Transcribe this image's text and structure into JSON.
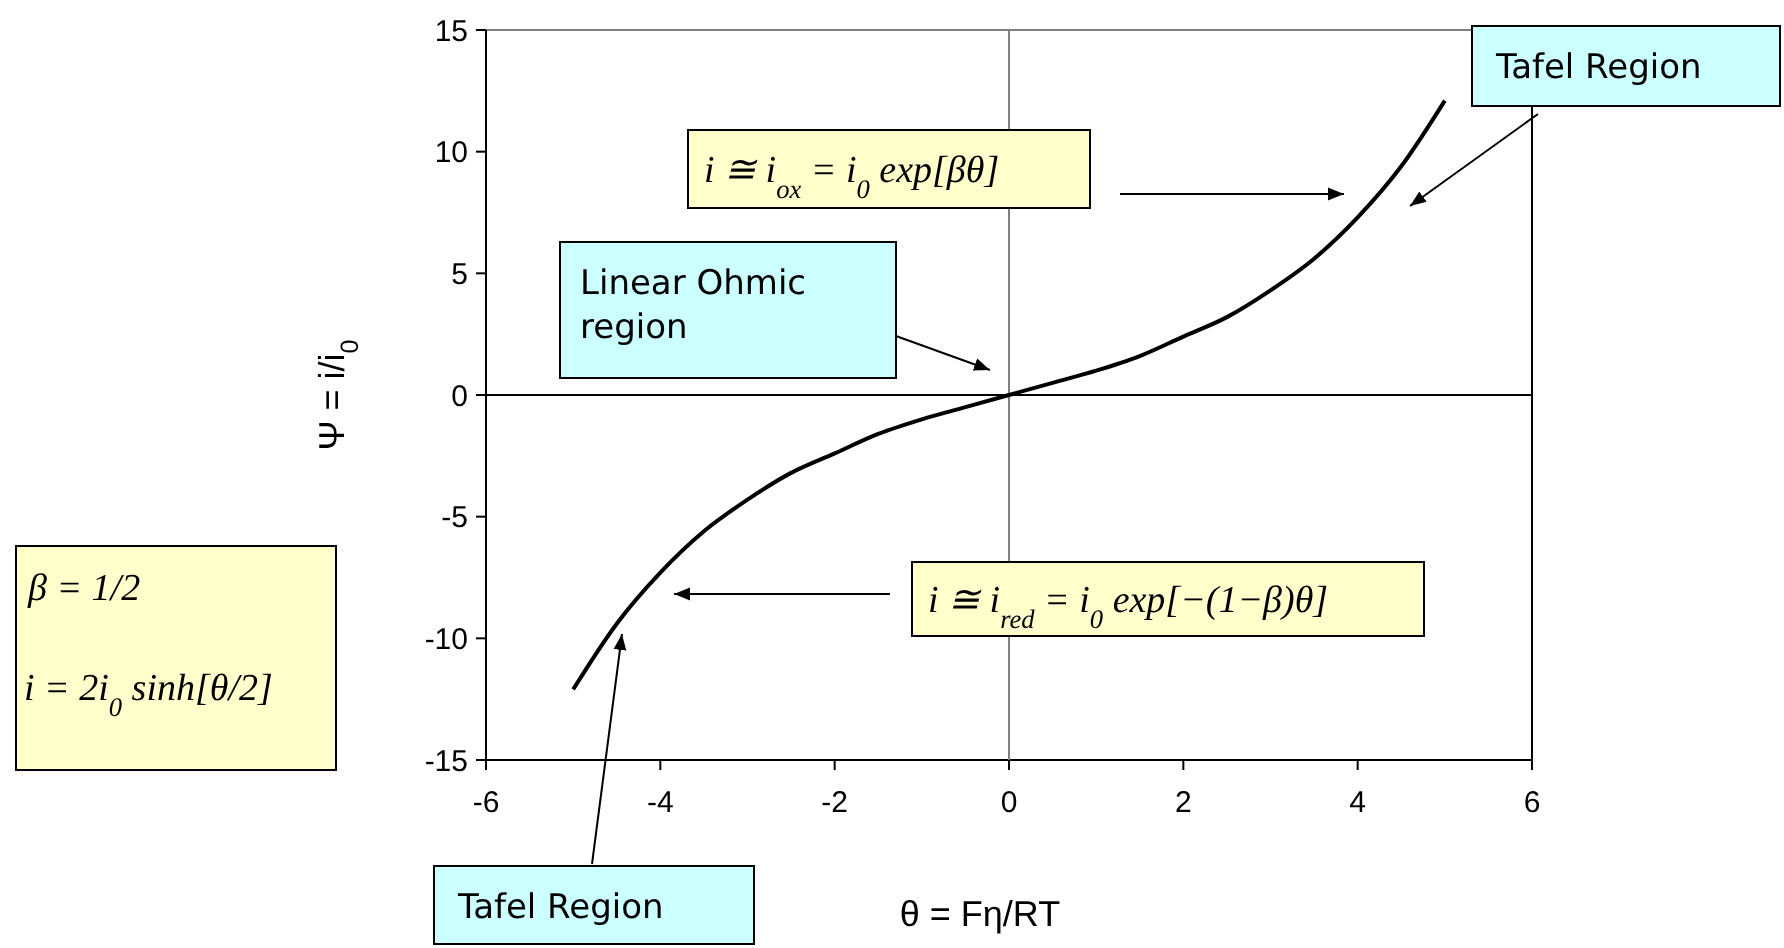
{
  "chart_data": {
    "type": "line",
    "xlabel": "θ = Fη/RT",
    "ylabel": "Ψ = i/i$_{0}$",
    "x": [
      -5,
      -4.5,
      -4,
      -3.5,
      -3,
      -2.5,
      -2,
      -1.5,
      -1,
      -0.5,
      0,
      0.5,
      1,
      1.5,
      2,
      2.5,
      3,
      3.5,
      4,
      4.5,
      5
    ],
    "series": [
      {
        "color": "#000000",
        "values": [
          -12.1,
          -9.4,
          -7.3,
          -5.6,
          -4.3,
          -3.2,
          -2.4,
          -1.6,
          -1,
          -0.5,
          0,
          0.5,
          1,
          1.6,
          2.4,
          3.2,
          4.3,
          5.6,
          7.3,
          9.4,
          12.1
        ]
      }
    ],
    "xlim": [
      -6,
      6
    ],
    "xticks": [
      -6,
      -4,
      -2,
      0,
      2,
      4,
      6
    ],
    "ylim": [
      -15,
      15
    ],
    "yticks": [
      -15,
      -10,
      -5,
      0,
      5,
      10,
      15
    ],
    "ref_lines": [
      {
        "axis": "y",
        "value": 0,
        "color": "#000000"
      },
      {
        "axis": "x",
        "value": 0,
        "color": "#808080"
      }
    ],
    "annotations": [
      "Tafel Region",
      "Linear Ohmic region",
      "i ≅ i$_{ox}$ = i$_{0}$ exp[βθ]",
      "i ≅ i$_{red}$ = i$_{0}$ exp[−(1−β)θ]",
      "Tafel Region",
      "β = 1/2",
      "i = 2i$_{0}$ sinh[θ/2]"
    ]
  }
}
